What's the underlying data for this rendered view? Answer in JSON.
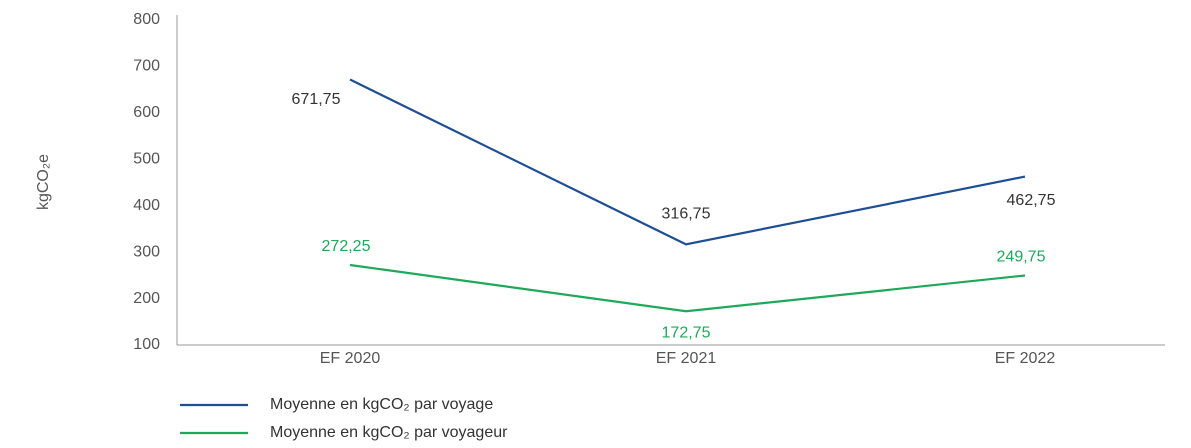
{
  "chart_data": {
    "type": "line",
    "y_label": "kgCO₂e",
    "categories": [
      "EF 2020",
      "EF 2021",
      "EF 2022"
    ],
    "series": [
      {
        "name": "Moyenne en kgCO₂ par voyage",
        "color": "#1f4e96",
        "values": [
          671.75,
          316.75,
          462.75
        ],
        "value_labels": [
          "671,75",
          "316,75",
          "462,75"
        ]
      },
      {
        "name": "Moyenne en kgCO₂ par voyageur",
        "color": "#1ea85a",
        "values": [
          272.25,
          172.75,
          249.75
        ],
        "value_labels": [
          "272,25",
          "172,75",
          "249,75"
        ]
      }
    ],
    "ylim": [
      100,
      800
    ],
    "yticks": [
      100,
      200,
      300,
      400,
      500,
      600,
      700,
      800
    ],
    "grid": false
  }
}
